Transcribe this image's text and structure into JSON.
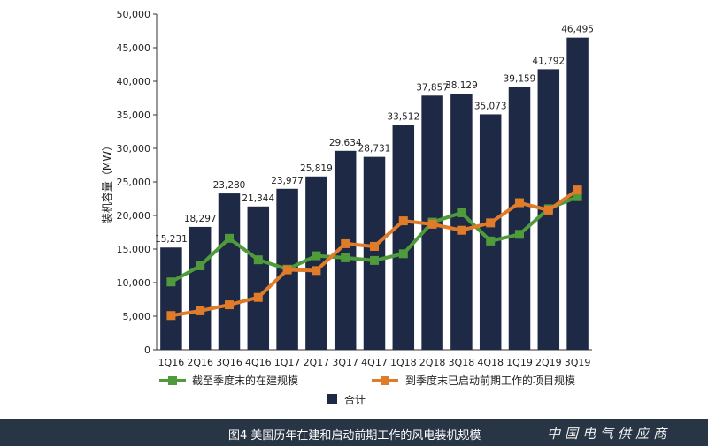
{
  "chart_data": {
    "type": "bar",
    "ylabel": "装机容量（MW）",
    "ylim": [
      0,
      50000
    ],
    "yticks": [
      "0",
      "5,000",
      "10,000",
      "15,000",
      "20,000",
      "25,000",
      "30,000",
      "35,000",
      "40,000",
      "45,000",
      "50,000"
    ],
    "categories": [
      "1Q16",
      "2Q16",
      "3Q16",
      "4Q16",
      "1Q17",
      "2Q17",
      "3Q17",
      "4Q17",
      "1Q18",
      "2Q18",
      "3Q18",
      "4Q18",
      "1Q19",
      "2Q19",
      "3Q19"
    ],
    "grid": false,
    "legend_placement": "bottom",
    "series": [
      {
        "name": "合计",
        "kind": "bar",
        "color": "#1e2a45",
        "values": [
          15231,
          18297,
          23280,
          21344,
          23977,
          25819,
          29634,
          28731,
          33512,
          37857,
          38129,
          35073,
          39159,
          41792,
          46495
        ],
        "labels": [
          "15,231",
          "18,297",
          "23,280",
          "21,344",
          "23,977",
          "25,819",
          "29,634",
          "28,731",
          "33,512",
          "37,857",
          "38,129",
          "35,073",
          "39,159",
          "41,792",
          "46,495"
        ]
      },
      {
        "name": "截至季度末的在建规模",
        "kind": "line",
        "color": "#4f9a3a",
        "values": [
          10100,
          12500,
          16600,
          13400,
          12000,
          14000,
          13700,
          13300,
          14300,
          19000,
          20400,
          16200,
          17200,
          21000,
          22800
        ]
      },
      {
        "name": "到季度末已启动前期工作的项目规模",
        "kind": "line",
        "color": "#e07b2a",
        "values": [
          5100,
          5800,
          6700,
          7800,
          11900,
          11800,
          15800,
          15400,
          19200,
          18700,
          17800,
          18900,
          21900,
          20800,
          23800
        ]
      }
    ]
  },
  "caption": "图4 美国历年在建和启动前期工作的风电装机规模",
  "watermark": "中国电气供应商"
}
